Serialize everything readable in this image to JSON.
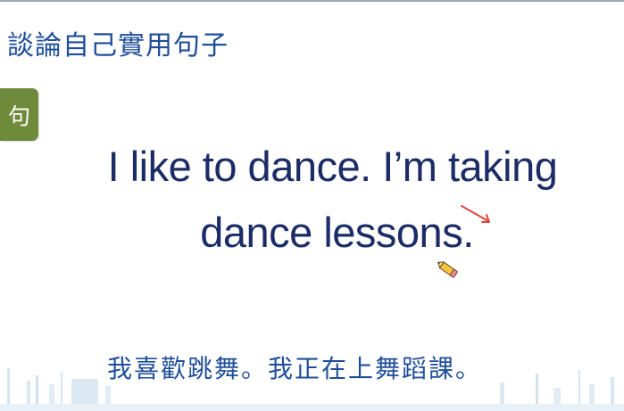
{
  "header": {
    "title": "談論自己實用句子"
  },
  "badge": {
    "label": "句"
  },
  "sentence": {
    "line1": "I like to dance. I’m taking",
    "line2": "dance lessons."
  },
  "translation": {
    "text": "我喜歡跳舞。我正在上舞蹈課。"
  },
  "colors": {
    "title_blue": "#1f4e9a",
    "sentence_navy": "#1c2c66",
    "badge_green": "#6f8a3a",
    "annotation_red": "#e0413a"
  },
  "icons": {
    "annotation": "red-arrow-icon",
    "cursor": "pencil-icon"
  }
}
